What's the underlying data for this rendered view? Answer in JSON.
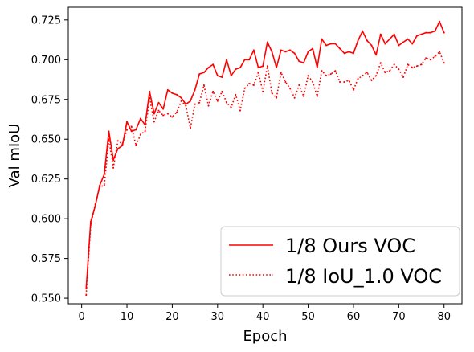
{
  "chart_data": {
    "type": "line",
    "xlabel": "Epoch",
    "ylabel": "Val mIoU",
    "xlim": [
      -2.95,
      83.95
    ],
    "ylim": [
      0.5465,
      0.733
    ],
    "xticks": [
      0,
      10,
      20,
      30,
      40,
      50,
      60,
      70,
      80
    ],
    "xtick_labels": [
      "0",
      "10",
      "20",
      "30",
      "40",
      "50",
      "60",
      "70",
      "80"
    ],
    "yticks": [
      0.55,
      0.575,
      0.6,
      0.625,
      0.65,
      0.675,
      0.7,
      0.725
    ],
    "ytick_labels": [
      "0.550",
      "0.575",
      "0.600",
      "0.625",
      "0.650",
      "0.675",
      "0.700",
      "0.725"
    ],
    "grid": false,
    "legend_position": "lower-right",
    "series": [
      {
        "name": "1/8 Ours VOC",
        "color": "#ff0000",
        "style": "solid",
        "x": [
          1,
          2,
          3,
          4,
          5,
          6,
          7,
          8,
          9,
          10,
          11,
          12,
          13,
          14,
          15,
          16,
          17,
          18,
          19,
          20,
          21,
          22,
          23,
          24,
          25,
          26,
          27,
          28,
          29,
          30,
          31,
          32,
          33,
          34,
          35,
          36,
          37,
          38,
          39,
          40,
          41,
          42,
          43,
          44,
          45,
          46,
          47,
          48,
          49,
          50,
          51,
          52,
          53,
          54,
          55,
          56,
          57,
          58,
          59,
          60,
          61,
          62,
          63,
          64,
          65,
          66,
          67,
          68,
          69,
          70,
          71,
          72,
          73,
          74,
          75,
          76,
          77,
          78,
          79,
          80
        ],
        "values": [
          0.556,
          0.598,
          0.608,
          0.621,
          0.628,
          0.655,
          0.637,
          0.644,
          0.646,
          0.661,
          0.655,
          0.656,
          0.663,
          0.659,
          0.68,
          0.666,
          0.673,
          0.669,
          0.681,
          0.679,
          0.678,
          0.676,
          0.672,
          0.674,
          0.681,
          0.691,
          0.692,
          0.695,
          0.697,
          0.69,
          0.689,
          0.7,
          0.69,
          0.694,
          0.695,
          0.7,
          0.7,
          0.706,
          0.695,
          0.696,
          0.711,
          0.705,
          0.695,
          0.706,
          0.705,
          0.706,
          0.704,
          0.699,
          0.698,
          0.705,
          0.707,
          0.695,
          0.713,
          0.709,
          0.71,
          0.71,
          0.707,
          0.704,
          0.705,
          0.704,
          0.712,
          0.718,
          0.712,
          0.709,
          0.703,
          0.716,
          0.71,
          0.713,
          0.716,
          0.709,
          0.711,
          0.713,
          0.71,
          0.715,
          0.716,
          0.717,
          0.717,
          0.718,
          0.724,
          0.717
        ]
      },
      {
        "name": "1/8 IoU_1.0 VOC",
        "color": "#ff0000",
        "style": "dotted",
        "x": [
          1,
          2,
          3,
          4,
          5,
          6,
          7,
          8,
          9,
          10,
          11,
          12,
          13,
          14,
          15,
          16,
          17,
          18,
          19,
          20,
          21,
          22,
          23,
          24,
          25,
          26,
          27,
          28,
          29,
          30,
          31,
          32,
          33,
          34,
          35,
          36,
          37,
          38,
          39,
          40,
          41,
          42,
          43,
          44,
          45,
          46,
          47,
          48,
          49,
          50,
          51,
          52,
          53,
          54,
          55,
          56,
          57,
          58,
          59,
          60,
          61,
          62,
          63,
          64,
          65,
          66,
          67,
          68,
          69,
          70,
          71,
          72,
          73,
          74,
          75,
          76,
          77,
          78,
          79,
          80
        ],
        "values": [
          0.552,
          0.596,
          0.609,
          0.62,
          0.621,
          0.65,
          0.632,
          0.649,
          0.647,
          0.656,
          0.658,
          0.646,
          0.653,
          0.655,
          0.676,
          0.661,
          0.668,
          0.665,
          0.666,
          0.664,
          0.667,
          0.674,
          0.671,
          0.657,
          0.672,
          0.673,
          0.684,
          0.671,
          0.68,
          0.674,
          0.68,
          0.673,
          0.67,
          0.678,
          0.668,
          0.682,
          0.685,
          0.684,
          0.692,
          0.68,
          0.696,
          0.679,
          0.676,
          0.692,
          0.686,
          0.682,
          0.676,
          0.684,
          0.677,
          0.69,
          0.686,
          0.677,
          0.693,
          0.69,
          0.691,
          0.693,
          0.686,
          0.686,
          0.687,
          0.681,
          0.688,
          0.69,
          0.692,
          0.687,
          0.69,
          0.698,
          0.692,
          0.693,
          0.697,
          0.694,
          0.689,
          0.697,
          0.695,
          0.696,
          0.697,
          0.701,
          0.7,
          0.702,
          0.705,
          0.698
        ]
      }
    ]
  }
}
